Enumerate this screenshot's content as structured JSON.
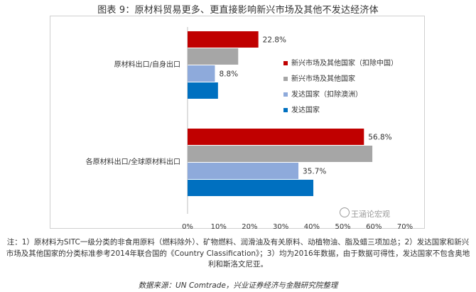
{
  "title": "图表 9：原材料贸易更多、更直接影响新兴市场及其他不发达经济体",
  "note": "注：1）原材料为SITC一级分类的非食用原料（燃料除外）、矿物燃料、润滑油及有关原料、动植物油、脂及蜡三项加总；2）发达国家和新兴市场及其他国家的分类标准参考2014年联合国的《Country Classification》；3）均为2016年数据，由于数据可得性，发达国家不包含奥地利和斯洛文尼亚。",
  "source": "数据来源：UN Comtrade，兴业证券经济与金融研究院整理",
  "watermark": "王涵论宏观",
  "colors": {
    "s1": "#c00000",
    "s2": "#a6a6a6",
    "s3": "#8eaadb",
    "s4": "#0070c0"
  },
  "chart_data": {
    "type": "bar",
    "orientation": "horizontal",
    "categories": [
      "原材料出口/自身出口",
      "各原材料出口/全球原材料出口"
    ],
    "series": [
      {
        "name": "新兴市场及其他国家（扣除中国）",
        "values": [
          22.8,
          56.8
        ],
        "labels": [
          "22.8%",
          "56.8%"
        ]
      },
      {
        "name": "新兴市场及其他国家",
        "values": [
          16.3,
          59.5
        ],
        "labels": [
          "",
          ""
        ]
      },
      {
        "name": "发达国家（扣除澳洲）",
        "values": [
          8.8,
          35.7
        ],
        "labels": [
          "8.8%",
          "35.7%"
        ]
      },
      {
        "name": "发达国家",
        "values": [
          9.8,
          40.5
        ],
        "labels": [
          "",
          ""
        ]
      }
    ],
    "xlim": [
      0,
      70
    ],
    "xticks": [
      "0%",
      "10%",
      "20%",
      "30%",
      "40%",
      "50%",
      "60%",
      "70%"
    ],
    "legend_position": "right"
  }
}
